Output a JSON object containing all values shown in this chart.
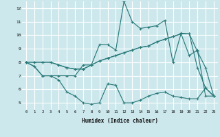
{
  "xlabel": "Humidex (Indice chaleur)",
  "background_color": "#cde8ed",
  "grid_color": "#ffffff",
  "line_color": "#2a7a7a",
  "xlim": [
    -0.5,
    23.5
  ],
  "ylim": [
    4.5,
    12.5
  ],
  "yticks": [
    5,
    6,
    7,
    8,
    9,
    10,
    11,
    12
  ],
  "xticks": [
    0,
    1,
    2,
    3,
    4,
    5,
    6,
    7,
    8,
    9,
    10,
    11,
    12,
    13,
    14,
    15,
    16,
    17,
    18,
    19,
    20,
    21,
    22,
    23
  ],
  "series": [
    [
      8.0,
      7.7,
      7.0,
      7.0,
      6.7,
      5.8,
      5.5,
      5.0,
      4.9,
      5.0,
      6.4,
      6.3,
      5.0,
      5.0,
      5.2,
      5.5,
      5.7,
      5.8,
      5.5,
      5.4,
      5.3,
      5.3,
      6.1,
      5.5
    ],
    [
      8.0,
      7.7,
      7.0,
      7.0,
      7.0,
      7.0,
      7.0,
      7.8,
      7.8,
      9.3,
      9.3,
      8.9,
      12.5,
      11.0,
      10.5,
      10.6,
      10.7,
      11.1,
      8.0,
      10.15,
      10.1,
      7.6,
      6.1,
      5.5
    ],
    [
      8.0,
      8.0,
      8.0,
      8.0,
      7.8,
      7.6,
      7.5,
      7.5,
      7.8,
      8.1,
      8.3,
      8.5,
      8.7,
      8.9,
      9.1,
      9.2,
      9.5,
      9.7,
      9.9,
      10.1,
      10.1,
      8.8,
      7.6,
      5.5
    ],
    [
      8.0,
      8.0,
      8.0,
      8.0,
      7.8,
      7.6,
      7.5,
      7.5,
      7.8,
      8.1,
      8.3,
      8.5,
      8.7,
      8.9,
      9.1,
      9.2,
      9.5,
      9.7,
      9.9,
      10.1,
      8.5,
      8.9,
      5.5,
      5.5
    ]
  ]
}
